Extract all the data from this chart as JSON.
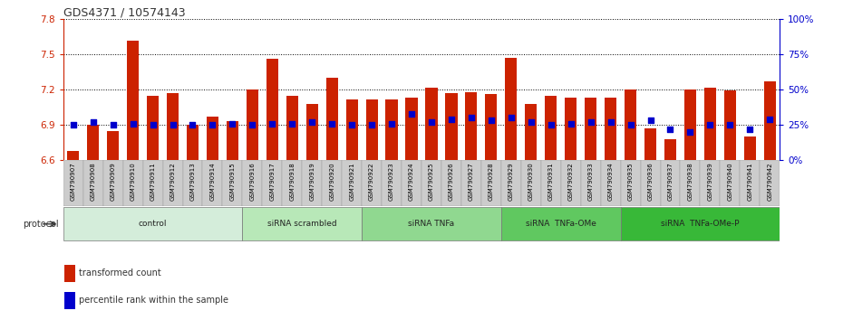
{
  "title": "GDS4371 / 10574143",
  "samples": [
    "GSM790907",
    "GSM790908",
    "GSM790909",
    "GSM790910",
    "GSM790911",
    "GSM790912",
    "GSM790913",
    "GSM790914",
    "GSM790915",
    "GSM790916",
    "GSM790917",
    "GSM790918",
    "GSM790919",
    "GSM790920",
    "GSM790921",
    "GSM790922",
    "GSM790923",
    "GSM790924",
    "GSM790925",
    "GSM790926",
    "GSM790927",
    "GSM790928",
    "GSM790929",
    "GSM790930",
    "GSM790931",
    "GSM790932",
    "GSM790933",
    "GSM790934",
    "GSM790935",
    "GSM790936",
    "GSM790937",
    "GSM790938",
    "GSM790939",
    "GSM790940",
    "GSM790941",
    "GSM790942"
  ],
  "red_values": [
    6.68,
    6.9,
    6.85,
    7.62,
    7.15,
    7.17,
    6.9,
    6.97,
    6.93,
    7.2,
    7.46,
    7.15,
    7.08,
    7.3,
    7.12,
    7.12,
    7.12,
    7.13,
    7.22,
    7.17,
    7.18,
    7.16,
    7.47,
    7.08,
    7.15,
    7.13,
    7.13,
    7.13,
    7.2,
    6.87,
    6.78,
    7.2,
    7.22,
    7.19,
    6.8,
    7.27
  ],
  "blue_values": [
    25,
    27,
    25,
    26,
    25,
    25,
    25,
    25,
    26,
    25,
    26,
    26,
    27,
    26,
    25,
    25,
    26,
    33,
    27,
    29,
    30,
    28,
    30,
    27,
    25,
    26,
    27,
    27,
    25,
    28,
    22,
    20,
    25,
    25,
    22,
    29
  ],
  "groups": [
    {
      "label": "control",
      "start": 0,
      "end": 8,
      "color": "#d4edda"
    },
    {
      "label": "siRNA scrambled",
      "start": 9,
      "end": 14,
      "color": "#b8e8b8"
    },
    {
      "label": "siRNA TNFa",
      "start": 15,
      "end": 21,
      "color": "#90d890"
    },
    {
      "label": "siRNA  TNFa-OMe",
      "start": 22,
      "end": 27,
      "color": "#60c860"
    },
    {
      "label": "siRNA  TNFa-OMe-P",
      "start": 28,
      "end": 35,
      "color": "#38b838"
    }
  ],
  "ylim_left": [
    6.6,
    7.8
  ],
  "yticks_left": [
    6.6,
    6.9,
    7.2,
    7.5,
    7.8
  ],
  "ylim_right": [
    0,
    100
  ],
  "yticks_right": [
    0,
    25,
    50,
    75,
    100
  ],
  "bar_color": "#cc2200",
  "dot_color": "#0000cc",
  "bg_color": "#ffffff",
  "title_color": "#333333",
  "left_axis_color": "#cc2200",
  "right_axis_color": "#0000cc",
  "grid_color": "#000000",
  "tick_bg_color": "#cccccc"
}
